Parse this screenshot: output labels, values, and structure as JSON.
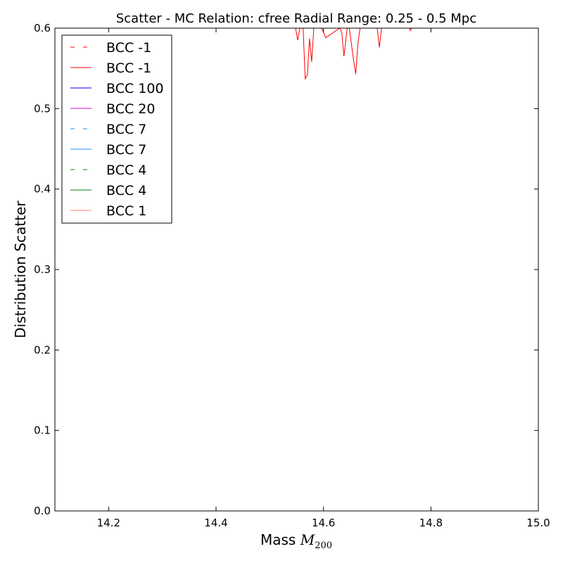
{
  "chart_data": {
    "type": "line",
    "title": "Scatter - MC Relation: cfree Radial Range: 0.25 - 0.5 Mpc",
    "xlabel": "Mass",
    "xlabel_math": "M",
    "xlabel_math_sub": "200",
    "ylabel": "Distribution Scatter",
    "xlim": [
      14.1,
      15.0
    ],
    "ylim": [
      0.0,
      0.6
    ],
    "x_ticks": [
      14.2,
      14.4,
      14.6,
      14.8,
      15.0
    ],
    "x_tick_labels": [
      "14.2",
      "14.4",
      "14.6",
      "14.8",
      "15.0"
    ],
    "y_ticks": [
      0.0,
      0.1,
      0.2,
      0.3,
      0.4,
      0.5,
      0.6
    ],
    "y_tick_labels": [
      "0.0",
      "0.1",
      "0.2",
      "0.3",
      "0.4",
      "0.5",
      "0.6"
    ],
    "grid": false,
    "legend_position": "top-left",
    "series": [
      {
        "name": "BCC -1",
        "color": "#ff0000",
        "style": "dashed",
        "x": [],
        "y": []
      },
      {
        "name": "BCC -1",
        "color": "#ff0000",
        "style": "solid",
        "x": [
          14.548,
          14.552,
          14.556,
          14.562,
          14.566,
          14.57,
          14.574,
          14.578,
          14.582,
          14.586,
          14.59,
          14.596,
          14.6,
          14.604,
          14.63,
          14.634,
          14.638,
          14.644,
          14.648,
          14.652,
          14.656,
          14.66,
          14.664,
          14.668,
          14.7,
          14.704,
          14.708,
          14.76,
          14.762,
          14.764
        ],
        "y": [
          0.6,
          0.585,
          0.6,
          0.6,
          0.537,
          0.542,
          0.587,
          0.558,
          0.6,
          0.6,
          0.6,
          0.6,
          0.595,
          0.588,
          0.6,
          0.595,
          0.565,
          0.6,
          0.6,
          0.58,
          0.56,
          0.543,
          0.58,
          0.6,
          0.6,
          0.576,
          0.6,
          0.6,
          0.597,
          0.6
        ]
      },
      {
        "name": "BCC 100",
        "color": "#0000ff",
        "style": "solid",
        "x": [],
        "y": []
      },
      {
        "name": "BCC 20",
        "color": "#cc00cc",
        "style": "solid",
        "x": [],
        "y": []
      },
      {
        "name": "BCC 7",
        "color": "#1e90ff",
        "style": "dashed",
        "x": [],
        "y": []
      },
      {
        "name": "BCC 7",
        "color": "#1e90ff",
        "style": "solid",
        "x": [],
        "y": []
      },
      {
        "name": "BCC 4",
        "color": "#008000",
        "style": "dashed",
        "x": [],
        "y": []
      },
      {
        "name": "BCC 4",
        "color": "#008000",
        "style": "solid",
        "x": [],
        "y": []
      },
      {
        "name": "BCC 1",
        "color": "#fa8072",
        "style": "solid",
        "x": [],
        "y": []
      }
    ]
  }
}
